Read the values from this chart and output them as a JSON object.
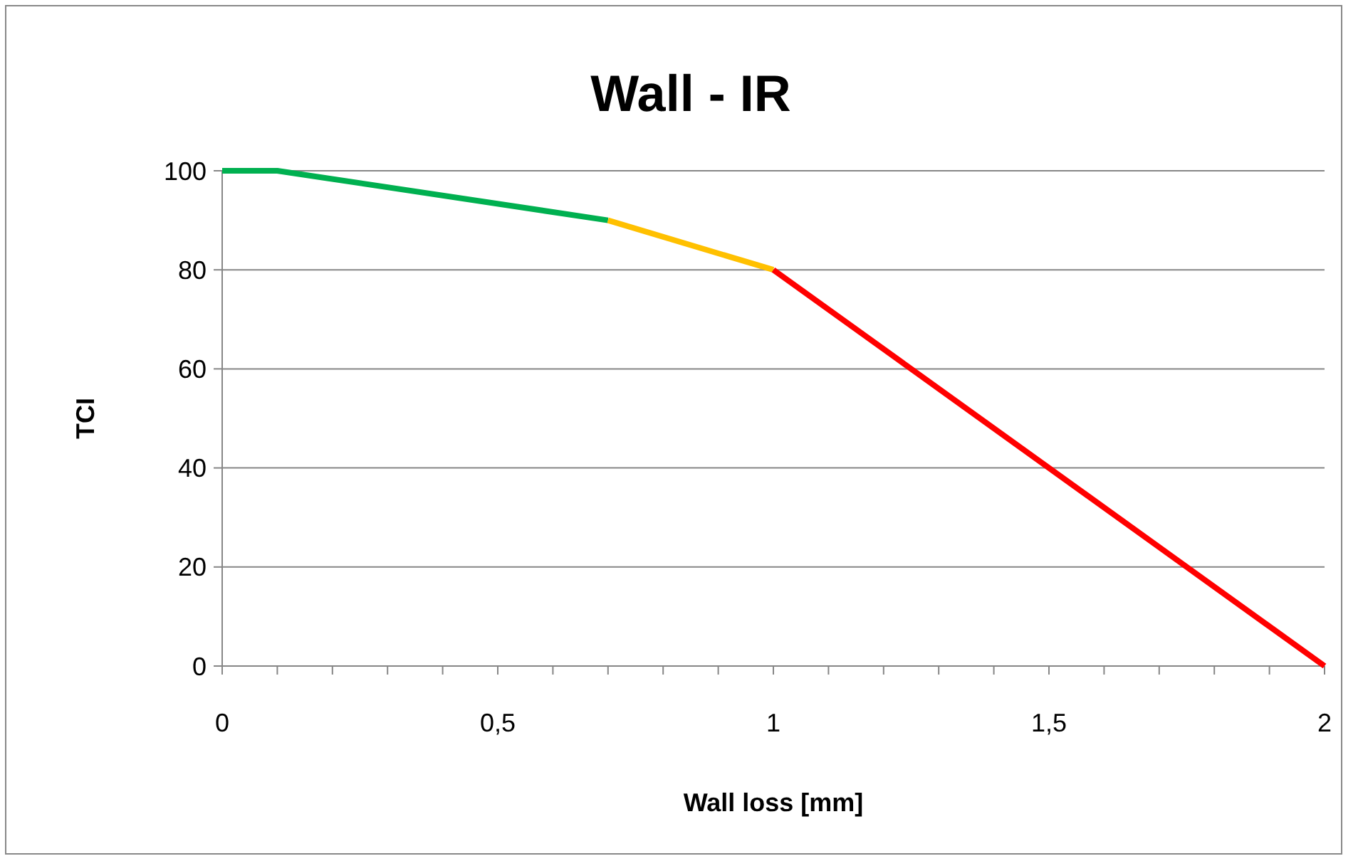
{
  "chart_data": {
    "type": "line",
    "title": "Wall - IR",
    "xlabel": "Wall loss [mm]",
    "ylabel": "TCI",
    "xlim": [
      0,
      2
    ],
    "ylim": [
      0,
      100
    ],
    "xticks": [
      0,
      {
        "value": 0.1,
        "label": null
      },
      {
        "value": 0.2,
        "label": null
      },
      {
        "value": 0.3,
        "label": null
      },
      {
        "value": 0.4,
        "label": null
      },
      {
        "value": 0.5,
        "label": "0,5"
      },
      {
        "value": 0.6,
        "label": null
      },
      {
        "value": 0.7,
        "label": null
      },
      {
        "value": 0.8,
        "label": null
      },
      {
        "value": 0.9,
        "label": null
      },
      1,
      {
        "value": 1.1,
        "label": null
      },
      {
        "value": 1.2,
        "label": null
      },
      {
        "value": 1.3,
        "label": null
      },
      {
        "value": 1.4,
        "label": null
      },
      {
        "value": 1.5,
        "label": "1,5"
      },
      {
        "value": 1.6,
        "label": null
      },
      {
        "value": 1.7,
        "label": null
      },
      {
        "value": 1.8,
        "label": null
      },
      {
        "value": 1.9,
        "label": null
      },
      2
    ],
    "yticks": [
      0,
      20,
      40,
      60,
      80,
      100
    ],
    "grid": "y",
    "marker": "none",
    "line_style": "solid",
    "series": [
      {
        "color": "#00b050",
        "x": [
          0,
          0.1,
          0.7
        ],
        "values": [
          100,
          100,
          90
        ]
      },
      {
        "color": "#ffc000",
        "x": [
          0.7,
          1
        ],
        "values": [
          90,
          80
        ]
      },
      {
        "color": "#ff0000",
        "x": [
          1,
          2
        ],
        "values": [
          80,
          0
        ]
      }
    ]
  }
}
